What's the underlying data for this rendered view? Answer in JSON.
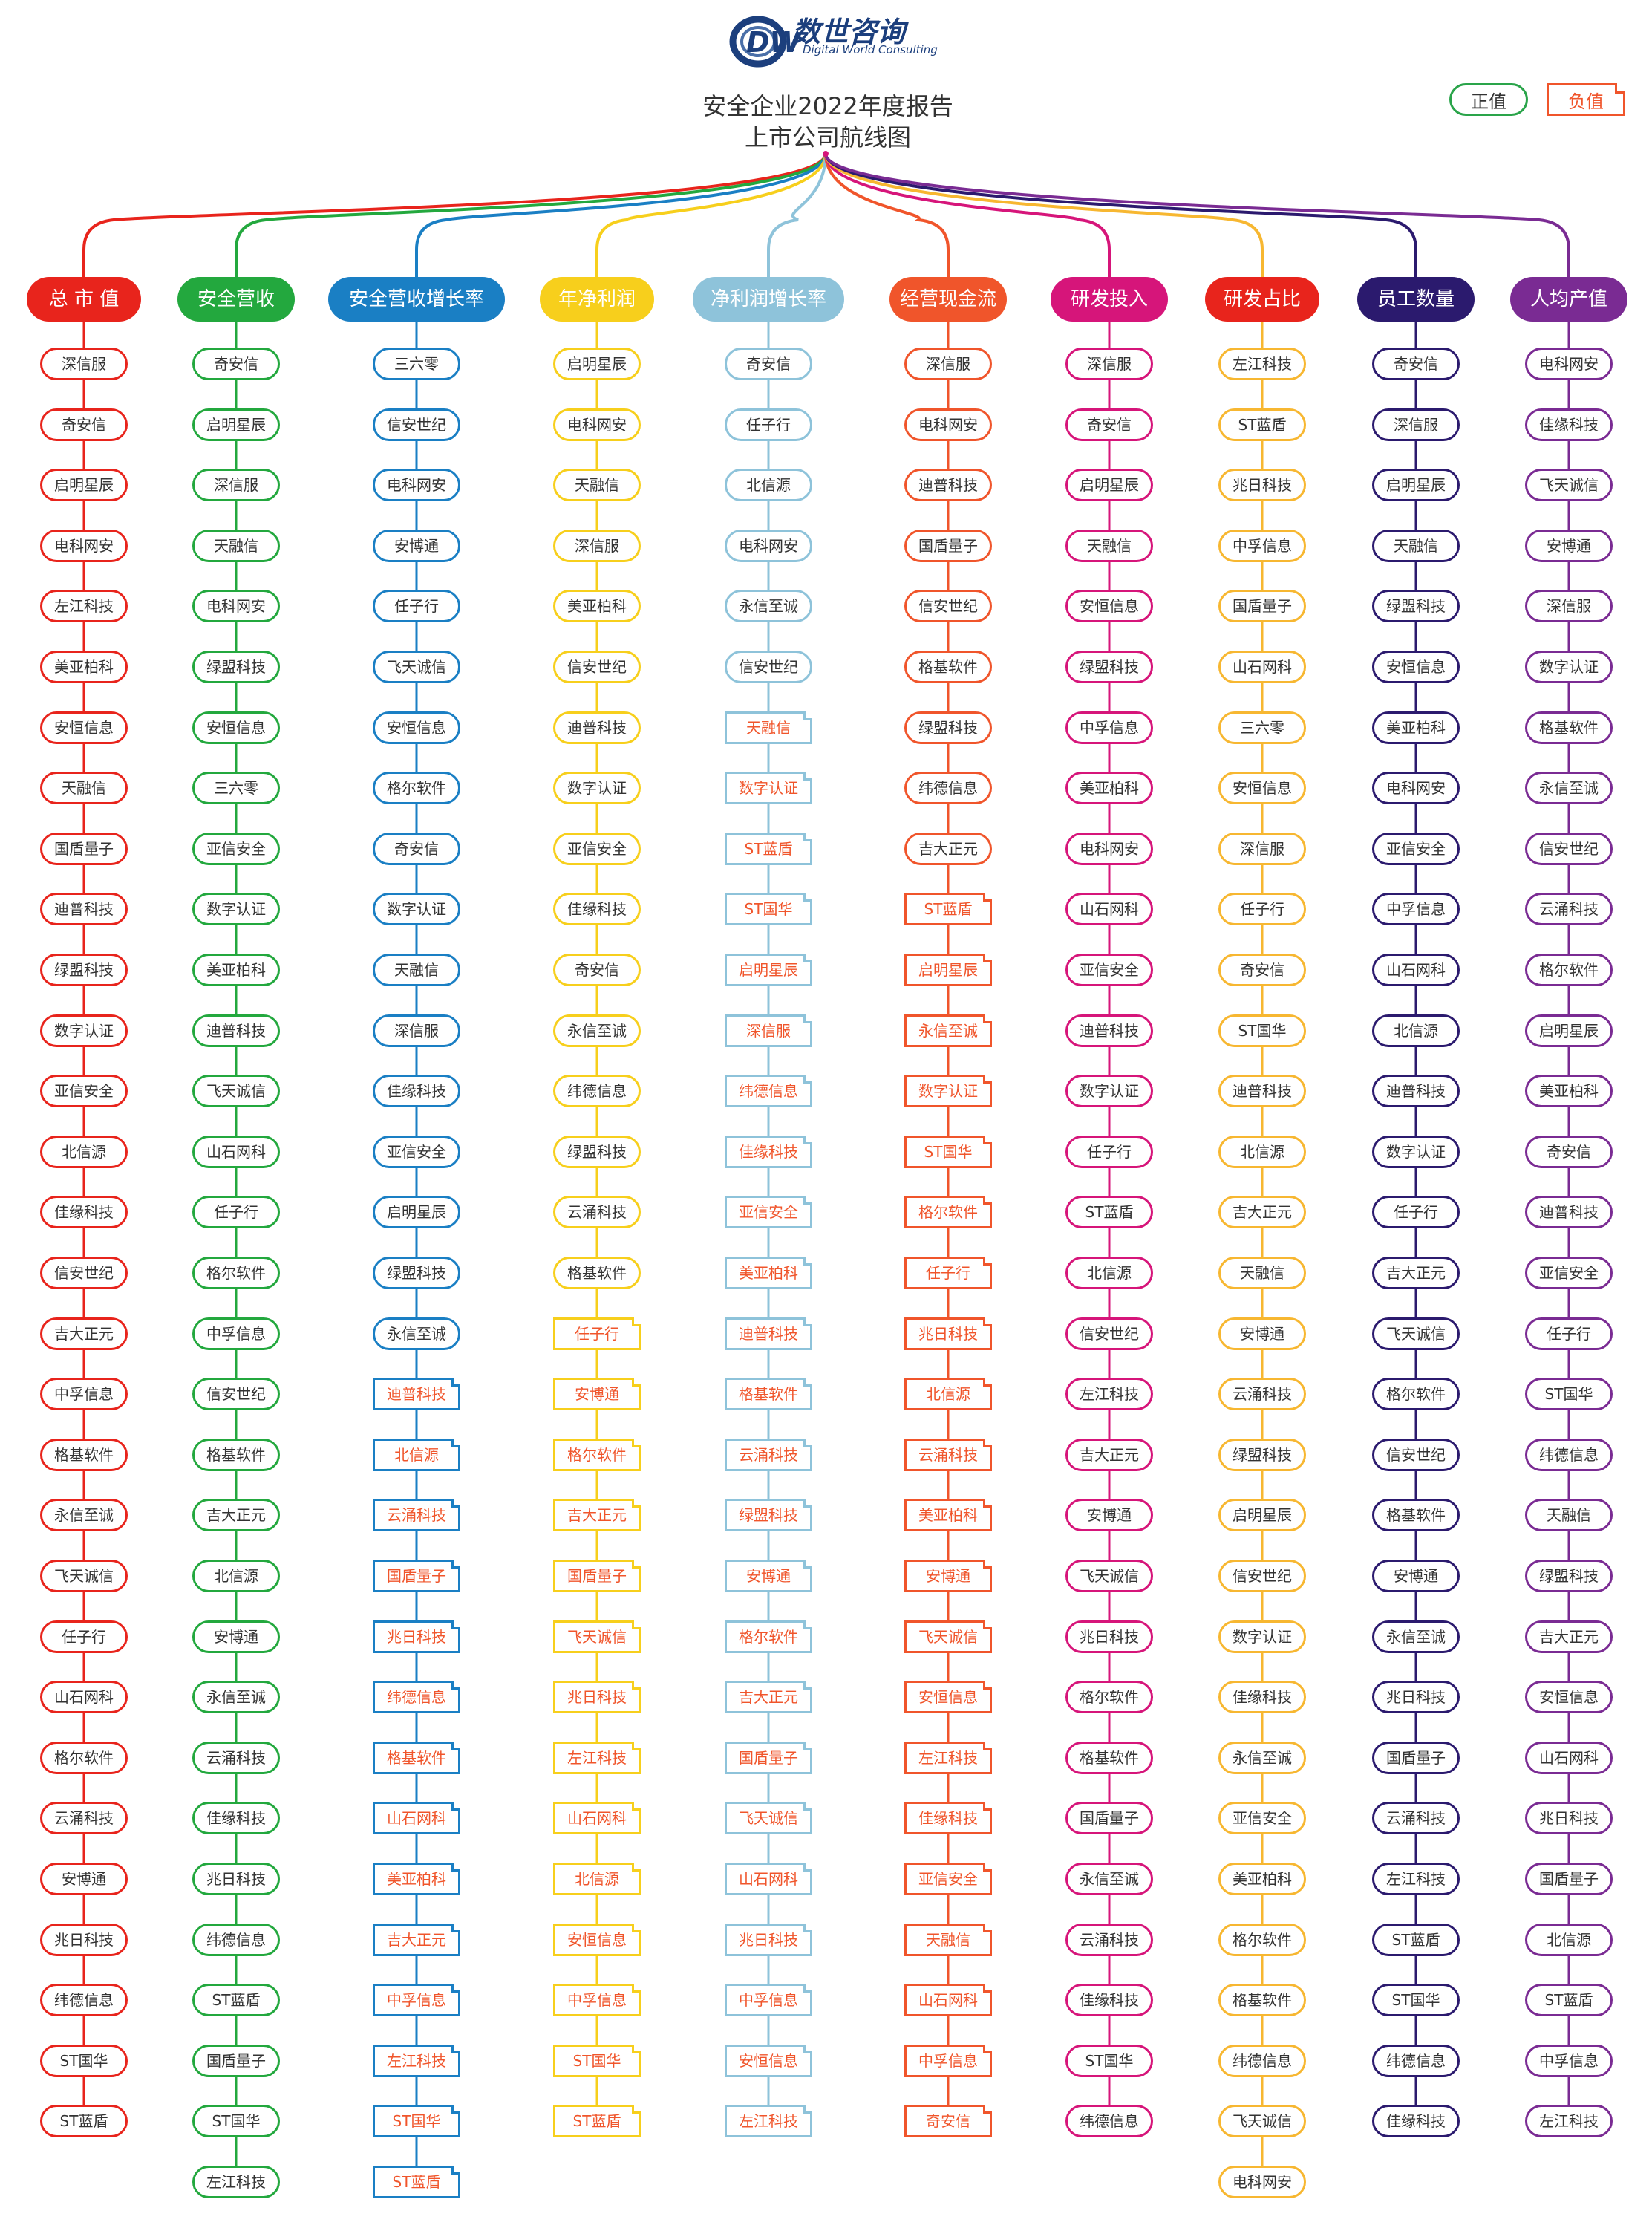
{
  "brand": {
    "name_cn": "数世咨询",
    "name_en": "Digital World Consulting",
    "logo_letters": "DW"
  },
  "title": {
    "line1": "安全企业2022年度报告",
    "line2": "上市公司航线图"
  },
  "legend": {
    "positive": "正值",
    "negative": "负值",
    "negative_color": "#f0552b"
  },
  "columns": [
    {
      "title": "总 市 值",
      "color": "#e8241c",
      "pos": [
        "深信服",
        "奇安信",
        "启明星辰",
        "电科网安",
        "左江科技",
        "美亚柏科",
        "安恒信息",
        "天融信",
        "国盾量子",
        "迪普科技",
        "绿盟科技",
        "数字认证",
        "亚信安全",
        "北信源",
        "佳缘科技",
        "信安世纪",
        "吉大正元",
        "中孚信息",
        "格基软件",
        "永信至诚",
        "飞天诚信",
        "任子行",
        "山石网科",
        "格尔软件",
        "云涌科技",
        "安博通",
        "兆日科技",
        "纬德信息",
        "ST国华",
        "ST蓝盾"
      ],
      "neg": []
    },
    {
      "title": "安全营收",
      "color": "#23a83e",
      "pos": [
        "奇安信",
        "启明星辰",
        "深信服",
        "天融信",
        "电科网安",
        "绿盟科技",
        "安恒信息",
        "三六零",
        "亚信安全",
        "数字认证",
        "美亚柏科",
        "迪普科技",
        "飞天诚信",
        "山石网科",
        "任子行",
        "格尔软件",
        "中孚信息",
        "信安世纪",
        "格基软件",
        "吉大正元",
        "北信源",
        "安博通",
        "永信至诚",
        "云涌科技",
        "佳缘科技",
        "兆日科技",
        "纬德信息",
        "ST蓝盾",
        "国盾量子",
        "ST国华",
        "左江科技"
      ],
      "neg": []
    },
    {
      "title": "安全营收增长率",
      "color": "#1a7fc4",
      "pos": [
        "三六零",
        "信安世纪",
        "电科网安",
        "安博通",
        "任子行",
        "飞天诚信",
        "安恒信息",
        "格尔软件",
        "奇安信",
        "数字认证",
        "天融信",
        "深信服",
        "佳缘科技",
        "亚信安全",
        "启明星辰",
        "绿盟科技",
        "永信至诚"
      ],
      "neg": [
        "迪普科技",
        "北信源",
        "云涌科技",
        "国盾量子",
        "兆日科技",
        "纬德信息",
        "格基软件",
        "山石网科",
        "美亚柏科",
        "吉大正元",
        "中孚信息",
        "左江科技",
        "ST国华",
        "ST蓝盾"
      ]
    },
    {
      "title": "年净利润",
      "color": "#f7cf1c",
      "pos": [
        "启明星辰",
        "电科网安",
        "天融信",
        "深信服",
        "美亚柏科",
        "信安世纪",
        "迪普科技",
        "数字认证",
        "亚信安全",
        "佳缘科技",
        "奇安信",
        "永信至诚",
        "纬德信息",
        "绿盟科技",
        "云涌科技",
        "格基软件"
      ],
      "neg": [
        "任子行",
        "安博通",
        "格尔软件",
        "吉大正元",
        "国盾量子",
        "飞天诚信",
        "兆日科技",
        "左江科技",
        "山石网科",
        "北信源",
        "安恒信息",
        "中孚信息",
        "ST国华",
        "ST蓝盾"
      ]
    },
    {
      "title": "净利润增长率",
      "color": "#8ec3da",
      "pos": [
        "奇安信",
        "任子行",
        "北信源",
        "电科网安",
        "永信至诚",
        "信安世纪"
      ],
      "neg": [
        "天融信",
        "数字认证",
        "ST蓝盾",
        "ST国华",
        "启明星辰",
        "深信服",
        "纬德信息",
        "佳缘科技",
        "亚信安全",
        "美亚柏科",
        "迪普科技",
        "格基软件",
        "云涌科技",
        "绿盟科技",
        "安博通",
        "格尔软件",
        "吉大正元",
        "国盾量子",
        "飞天诚信",
        "山石网科",
        "兆日科技",
        "中孚信息",
        "安恒信息",
        "左江科技"
      ]
    },
    {
      "title": "经营现金流",
      "color": "#f0552b",
      "pos": [
        "深信服",
        "电科网安",
        "迪普科技",
        "国盾量子",
        "信安世纪",
        "格基软件",
        "绿盟科技",
        "纬德信息",
        "吉大正元"
      ],
      "neg": [
        "ST蓝盾",
        "启明星辰",
        "永信至诚",
        "数字认证",
        "ST国华",
        "格尔软件",
        "任子行",
        "兆日科技",
        "北信源",
        "云涌科技",
        "美亚柏科",
        "安博通",
        "飞天诚信",
        "安恒信息",
        "左江科技",
        "佳缘科技",
        "亚信安全",
        "天融信",
        "山石网科",
        "中孚信息",
        "奇安信"
      ]
    },
    {
      "title": "研发投入",
      "color": "#d6157a",
      "pos": [
        "深信服",
        "奇安信",
        "启明星辰",
        "天融信",
        "安恒信息",
        "绿盟科技",
        "中孚信息",
        "美亚柏科",
        "电科网安",
        "山石网科",
        "亚信安全",
        "迪普科技",
        "数字认证",
        "任子行",
        "ST蓝盾",
        "北信源",
        "信安世纪",
        "左江科技",
        "吉大正元",
        "安博通",
        "飞天诚信",
        "兆日科技",
        "格尔软件",
        "格基软件",
        "国盾量子",
        "永信至诚",
        "云涌科技",
        "佳缘科技",
        "ST国华",
        "纬德信息"
      ],
      "neg": []
    },
    {
      "title": "研发占比",
      "color": "#e8241c",
      "edge": "#f7b731",
      "pos": [
        "左江科技",
        "ST蓝盾",
        "兆日科技",
        "中孚信息",
        "国盾量子",
        "山石网科",
        "三六零",
        "安恒信息",
        "深信服",
        "任子行",
        "奇安信",
        "ST国华",
        "迪普科技",
        "北信源",
        "吉大正元",
        "天融信",
        "安博通",
        "云涌科技",
        "绿盟科技",
        "启明星辰",
        "信安世纪",
        "数字认证",
        "佳缘科技",
        "永信至诚",
        "亚信安全",
        "美亚柏科",
        "格尔软件",
        "格基软件",
        "纬德信息",
        "飞天诚信",
        "电科网安"
      ],
      "neg": []
    },
    {
      "title": "员工数量",
      "color": "#2b1a6e",
      "pos": [
        "奇安信",
        "深信服",
        "启明星辰",
        "天融信",
        "绿盟科技",
        "安恒信息",
        "美亚柏科",
        "电科网安",
        "亚信安全",
        "中孚信息",
        "山石网科",
        "北信源",
        "迪普科技",
        "数字认证",
        "任子行",
        "吉大正元",
        "飞天诚信",
        "格尔软件",
        "信安世纪",
        "格基软件",
        "安博通",
        "永信至诚",
        "兆日科技",
        "国盾量子",
        "云涌科技",
        "左江科技",
        "ST蓝盾",
        "ST国华",
        "纬德信息",
        "佳缘科技"
      ],
      "neg": []
    },
    {
      "title": "人均产值",
      "color": "#7a2b93",
      "pos": [
        "电科网安",
        "佳缘科技",
        "飞天诚信",
        "安博通",
        "深信服",
        "数字认证",
        "格基软件",
        "永信至诚",
        "信安世纪",
        "云涌科技",
        "格尔软件",
        "启明星辰",
        "美亚柏科",
        "奇安信",
        "迪普科技",
        "亚信安全",
        "任子行",
        "ST国华",
        "纬德信息",
        "天融信",
        "绿盟科技",
        "吉大正元",
        "安恒信息",
        "山石网科",
        "兆日科技",
        "国盾量子",
        "北信源",
        "ST蓝盾",
        "中孚信息",
        "左江科技"
      ],
      "neg": []
    }
  ]
}
